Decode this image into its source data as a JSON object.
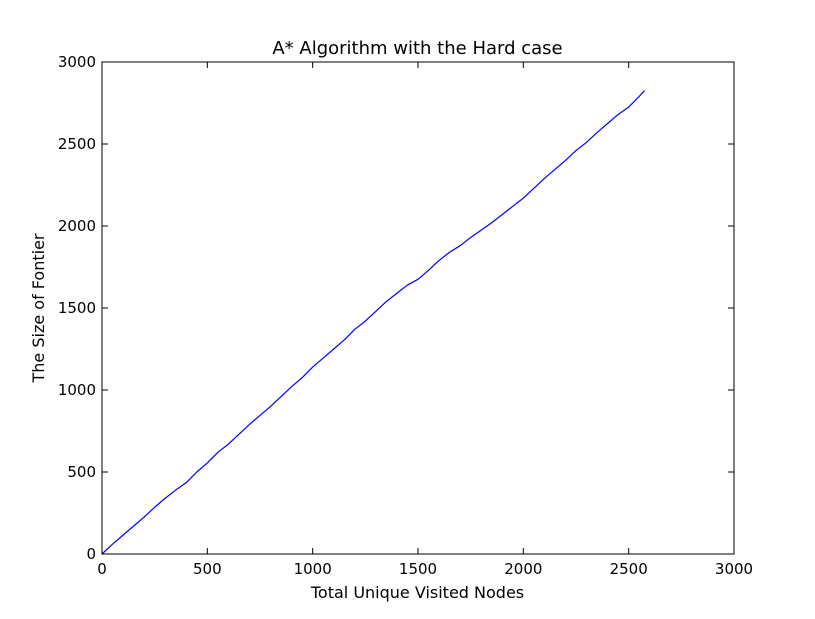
{
  "chart_data": {
    "type": "line",
    "title": "A* Algorithm with the Hard case",
    "xlabel": "Total Unique Visited Nodes",
    "ylabel": "The Size of Fontier",
    "xlim": [
      0,
      3000
    ],
    "ylim": [
      0,
      3000
    ],
    "x_ticks": [
      0,
      500,
      1000,
      1500,
      2000,
      2500,
      3000
    ],
    "y_ticks": [
      0,
      500,
      1000,
      1500,
      2000,
      2500,
      3000
    ],
    "x_tick_labels": [
      "0",
      "500",
      "1000",
      "1500",
      "2000",
      "2500",
      "3000"
    ],
    "y_tick_labels": [
      "0",
      "500",
      "1000",
      "1500",
      "2000",
      "2500",
      "3000"
    ],
    "grid": false,
    "series": [
      {
        "color": "#0000ff",
        "x": [
          0,
          50,
          100,
          150,
          200,
          250,
          300,
          350,
          400,
          450,
          500,
          550,
          600,
          650,
          700,
          750,
          800,
          850,
          900,
          950,
          1000,
          1050,
          1100,
          1150,
          1200,
          1250,
          1300,
          1350,
          1400,
          1450,
          1500,
          1550,
          1600,
          1650,
          1700,
          1750,
          1800,
          1850,
          1900,
          1950,
          2000,
          2050,
          2100,
          2150,
          2200,
          2250,
          2300,
          2350,
          2400,
          2450,
          2500,
          2550,
          2575
        ],
        "y": [
          0,
          60,
          115,
          170,
          225,
          285,
          340,
          390,
          435,
          500,
          555,
          620,
          670,
          730,
          790,
          845,
          900,
          960,
          1020,
          1075,
          1140,
          1195,
          1250,
          1305,
          1370,
          1420,
          1480,
          1540,
          1590,
          1640,
          1675,
          1730,
          1790,
          1840,
          1880,
          1930,
          1975,
          2020,
          2070,
          2120,
          2170,
          2230,
          2290,
          2345,
          2400,
          2460,
          2510,
          2570,
          2625,
          2680,
          2725,
          2790,
          2825
        ]
      }
    ]
  }
}
